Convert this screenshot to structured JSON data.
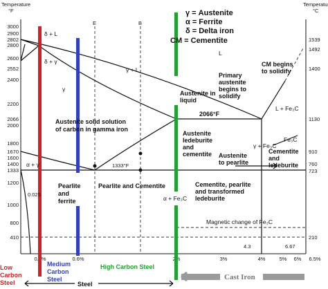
{
  "axis_left": {
    "title": [
      "Temperature",
      "°F"
    ],
    "ticks": [
      "3000",
      "2900",
      "2802",
      "2800",
      "2600",
      "2552",
      "2400",
      "2200",
      "2066",
      "2000",
      "1800",
      "1670",
      "1600",
      "1400",
      "1333",
      "1200",
      "1000",
      "800",
      "410"
    ]
  },
  "axis_right": {
    "title": [
      "Temperature",
      "°C"
    ],
    "ticks": [
      "1539",
      "1492",
      "1400",
      "1130",
      "910",
      "760",
      "723",
      "210"
    ]
  },
  "axis_bottom": {
    "ticks": [
      "0.3%",
      "0.6%",
      "2%",
      "3%",
      "4%",
      "5%",
      "6%",
      "6.5%"
    ]
  },
  "legend": [
    "γ = Austenite",
    "α = Ferrite",
    "δ = Delta iron",
    "CM = Cementite"
  ],
  "markers": [
    "E",
    "B"
  ],
  "regions": {
    "delta_liquid": "δ + L",
    "delta_gamma": "δ + γ",
    "gamma_liquid": "γ + L",
    "liquid": "L",
    "gamma": "γ",
    "primary_austenite": [
      "Primary",
      "austenite",
      "begins to",
      "solidify"
    ],
    "cm_begins": [
      "CM begins",
      "to solidify"
    ],
    "austenite_liquid": [
      "Austenite in",
      "liquid"
    ],
    "eutectic_temp": "2066°F",
    "liquid_fe3c": "L + Fe₃C",
    "austenite_solution": [
      "Austenite solid solution",
      "of carbon in gamma iron"
    ],
    "fe3c": "Fe₃C",
    "austenite_ledeburite": [
      "Austenite",
      "ledeburite",
      "and",
      "cementite"
    ],
    "gamma_fe3c": "γ + Fe₃C",
    "austenite_pearlite": [
      "Austenite",
      "to pearlite"
    ],
    "cementite_ledeburite": [
      "Cementite",
      "and",
      "ledeburite"
    ],
    "alpha_gamma": "α + γ",
    "eutectoid_temp": "1333°F",
    "ferrite_limit": "0.025",
    "pearlite_ferrite": [
      "Pearlite",
      "and",
      "ferrite"
    ],
    "pearlite_cementite": "Pearlite and Cementite",
    "alpha_fe3c": "α + Fe₃C",
    "transformed": [
      "Cementite, pearlite",
      "and transformed",
      "ledeburite"
    ],
    "magnetic": "Magnetic change of Fe₃C",
    "eutectic_c": "4.3",
    "cementite_c": "6.67"
  },
  "bottom": {
    "low_carbon": [
      "Low",
      "Carbon",
      "Steel"
    ],
    "medium_carbon": [
      "Medium",
      "Carbon",
      "Steel"
    ],
    "high_carbon": "High Carbon Steel",
    "steel": "Steel",
    "cast_iron": "Cast Iron"
  }
}
